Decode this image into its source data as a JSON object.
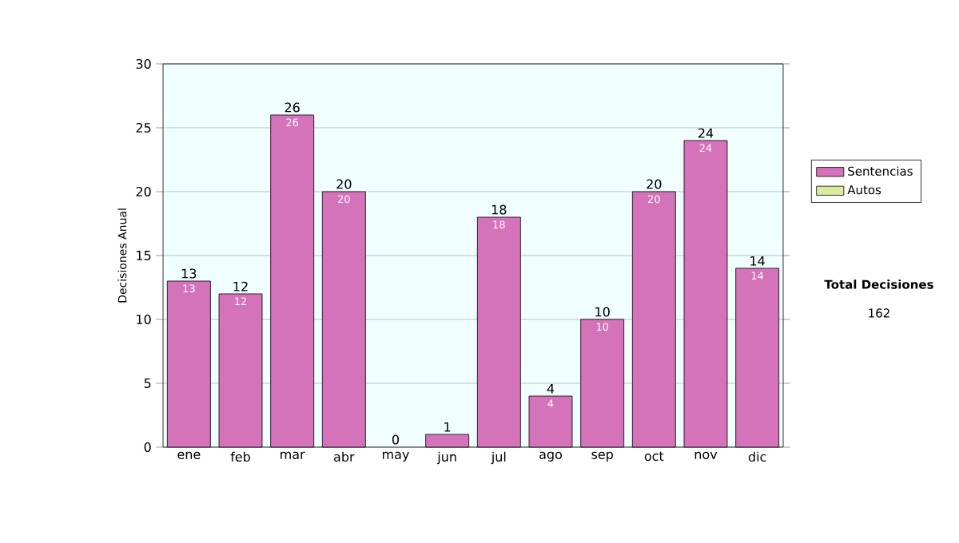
{
  "chart_data": {
    "type": "bar",
    "stacked": true,
    "ylabel": "Decisiones Anual",
    "categories": [
      "ene",
      "feb",
      "mar",
      "abr",
      "may",
      "jun",
      "jul",
      "ago",
      "sep",
      "oct",
      "nov",
      "dic"
    ],
    "series": [
      {
        "name": "Sentencias",
        "color": "#d473b9",
        "values": [
          13,
          12,
          26,
          20,
          0,
          1,
          18,
          4,
          10,
          20,
          24,
          14
        ],
        "value_labels": [
          "13",
          "12",
          "26",
          "20",
          null,
          null,
          "18",
          "4",
          "10",
          "20",
          "24",
          "14"
        ]
      },
      {
        "name": "Autos",
        "color": "#d9eb9c",
        "values": [
          0,
          0,
          0,
          0,
          0,
          0,
          0,
          0,
          0,
          0,
          0,
          0
        ]
      }
    ],
    "totals": [
      "13",
      "12",
      "26",
      "20",
      "0",
      "1",
      "18",
      "4",
      "10",
      "20",
      "24",
      "14"
    ],
    "ylim": [
      0,
      30
    ],
    "yticks": [
      0,
      5,
      10,
      15,
      20,
      25,
      30
    ],
    "grid": "y",
    "legend": "right",
    "annotations": [
      "Total Decisiones",
      "162"
    ]
  }
}
